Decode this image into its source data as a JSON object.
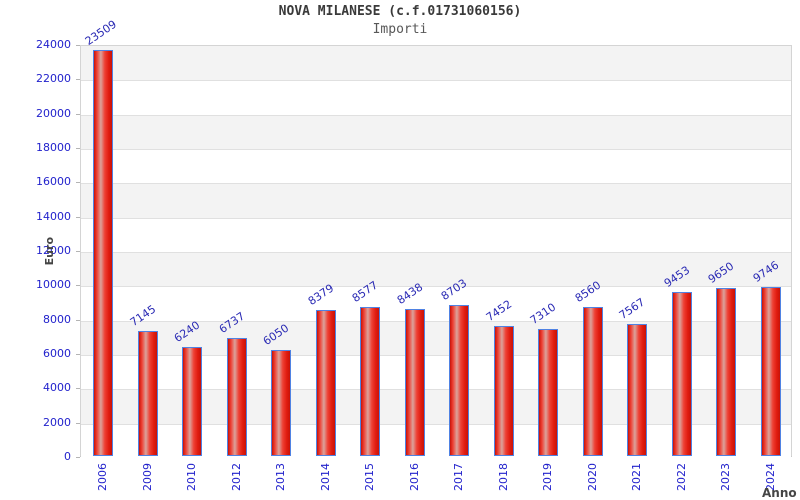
{
  "header": {
    "title": "NOVA MILANESE (c.f.01731060156)",
    "subtitle": "Importi"
  },
  "chart_data": {
    "type": "bar",
    "title": "NOVA MILANESE (c.f.01731060156)",
    "subtitle": "Importi",
    "xlabel": "Anno",
    "ylabel": "Euro",
    "categories": [
      "2006",
      "2009",
      "2010",
      "2012",
      "2013",
      "2014",
      "2015",
      "2016",
      "2017",
      "2018",
      "2019",
      "2020",
      "2021",
      "2022",
      "2023",
      "2024"
    ],
    "values": [
      23509,
      7145,
      6240,
      6737,
      6050,
      8379,
      8577,
      8438,
      8703,
      7452,
      7310,
      8560,
      7567,
      9453,
      9650,
      9746
    ],
    "ylim": [
      0,
      24000
    ],
    "ytick_step": 2000,
    "ytick_labels": [
      "0",
      "2000",
      "4000",
      "6000",
      "8000",
      "10000",
      "12000",
      "14000",
      "16000",
      "18000",
      "20000",
      "22000",
      "24000"
    ],
    "grid": "horizontal gridlines every 2000 with alternating gray/white bands",
    "legend_position": "none",
    "value_labels": "above bars, rotated, blue",
    "colors": {
      "bar_fill_edge": "#c81208",
      "bar_fill_mid": "#dba29b",
      "bar_border": "#4f82e3",
      "tick_label": "#2222cc",
      "value_label": "#2a2ab4",
      "band_gray": "#f3f3f3",
      "gridline": "#e0e0e0",
      "title_text": "#3a3a3a",
      "subtitle_text": "#585858",
      "axis_title_text": "#454545"
    }
  }
}
